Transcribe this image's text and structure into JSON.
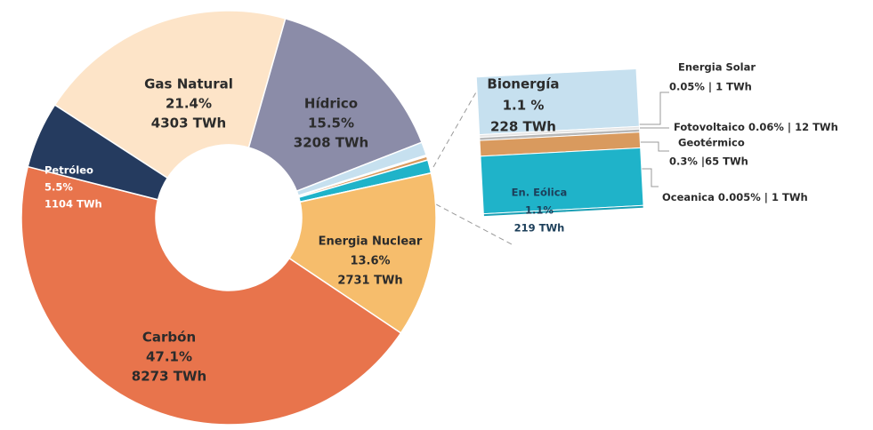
{
  "chart_data": {
    "type": "pie",
    "donut": true,
    "categories": [
      "Gas Natural",
      "Hídrico",
      "Bionergía",
      "Energia Solar",
      "Fotovoltaico",
      "Geotérmico",
      "En. Eólica",
      "Oceanica",
      "Energia Nuclear",
      "Carbón",
      "Petróleo"
    ],
    "values": [
      21.4,
      15.5,
      1.1,
      0.05,
      0.06,
      0.3,
      1.1,
      0.005,
      13.6,
      47.1,
      5.5
    ],
    "value_labels": [
      "21.4%",
      "15.5%",
      "1.1 %",
      "0.05% | 1 TWh",
      "0.06% | 12 TWh",
      "0.3% |65 TWh",
      "1.1%",
      "0.005% | 1 TWh",
      "13.6%",
      "47.1%",
      "5.5%"
    ],
    "twh": [
      4303,
      3208,
      228,
      1,
      12,
      65,
      219,
      1,
      2731,
      8273,
      1104
    ],
    "twh_labels": [
      "4303 TWh",
      "3208 TWh",
      "228 TWh",
      null,
      null,
      null,
      "219 TWh",
      null,
      "2731 TWh",
      "8273 TWh",
      "1104 TWh"
    ],
    "colors": [
      "#fde4c8",
      "#8b8ca8",
      "#c6e0ef",
      "#e6e6e6",
      "#b8b8b8",
      "#d99a5e",
      "#1fb3c9",
      "#1a9fb4",
      "#f6bd6c",
      "#e8744c",
      "#253b5f"
    ]
  }
}
